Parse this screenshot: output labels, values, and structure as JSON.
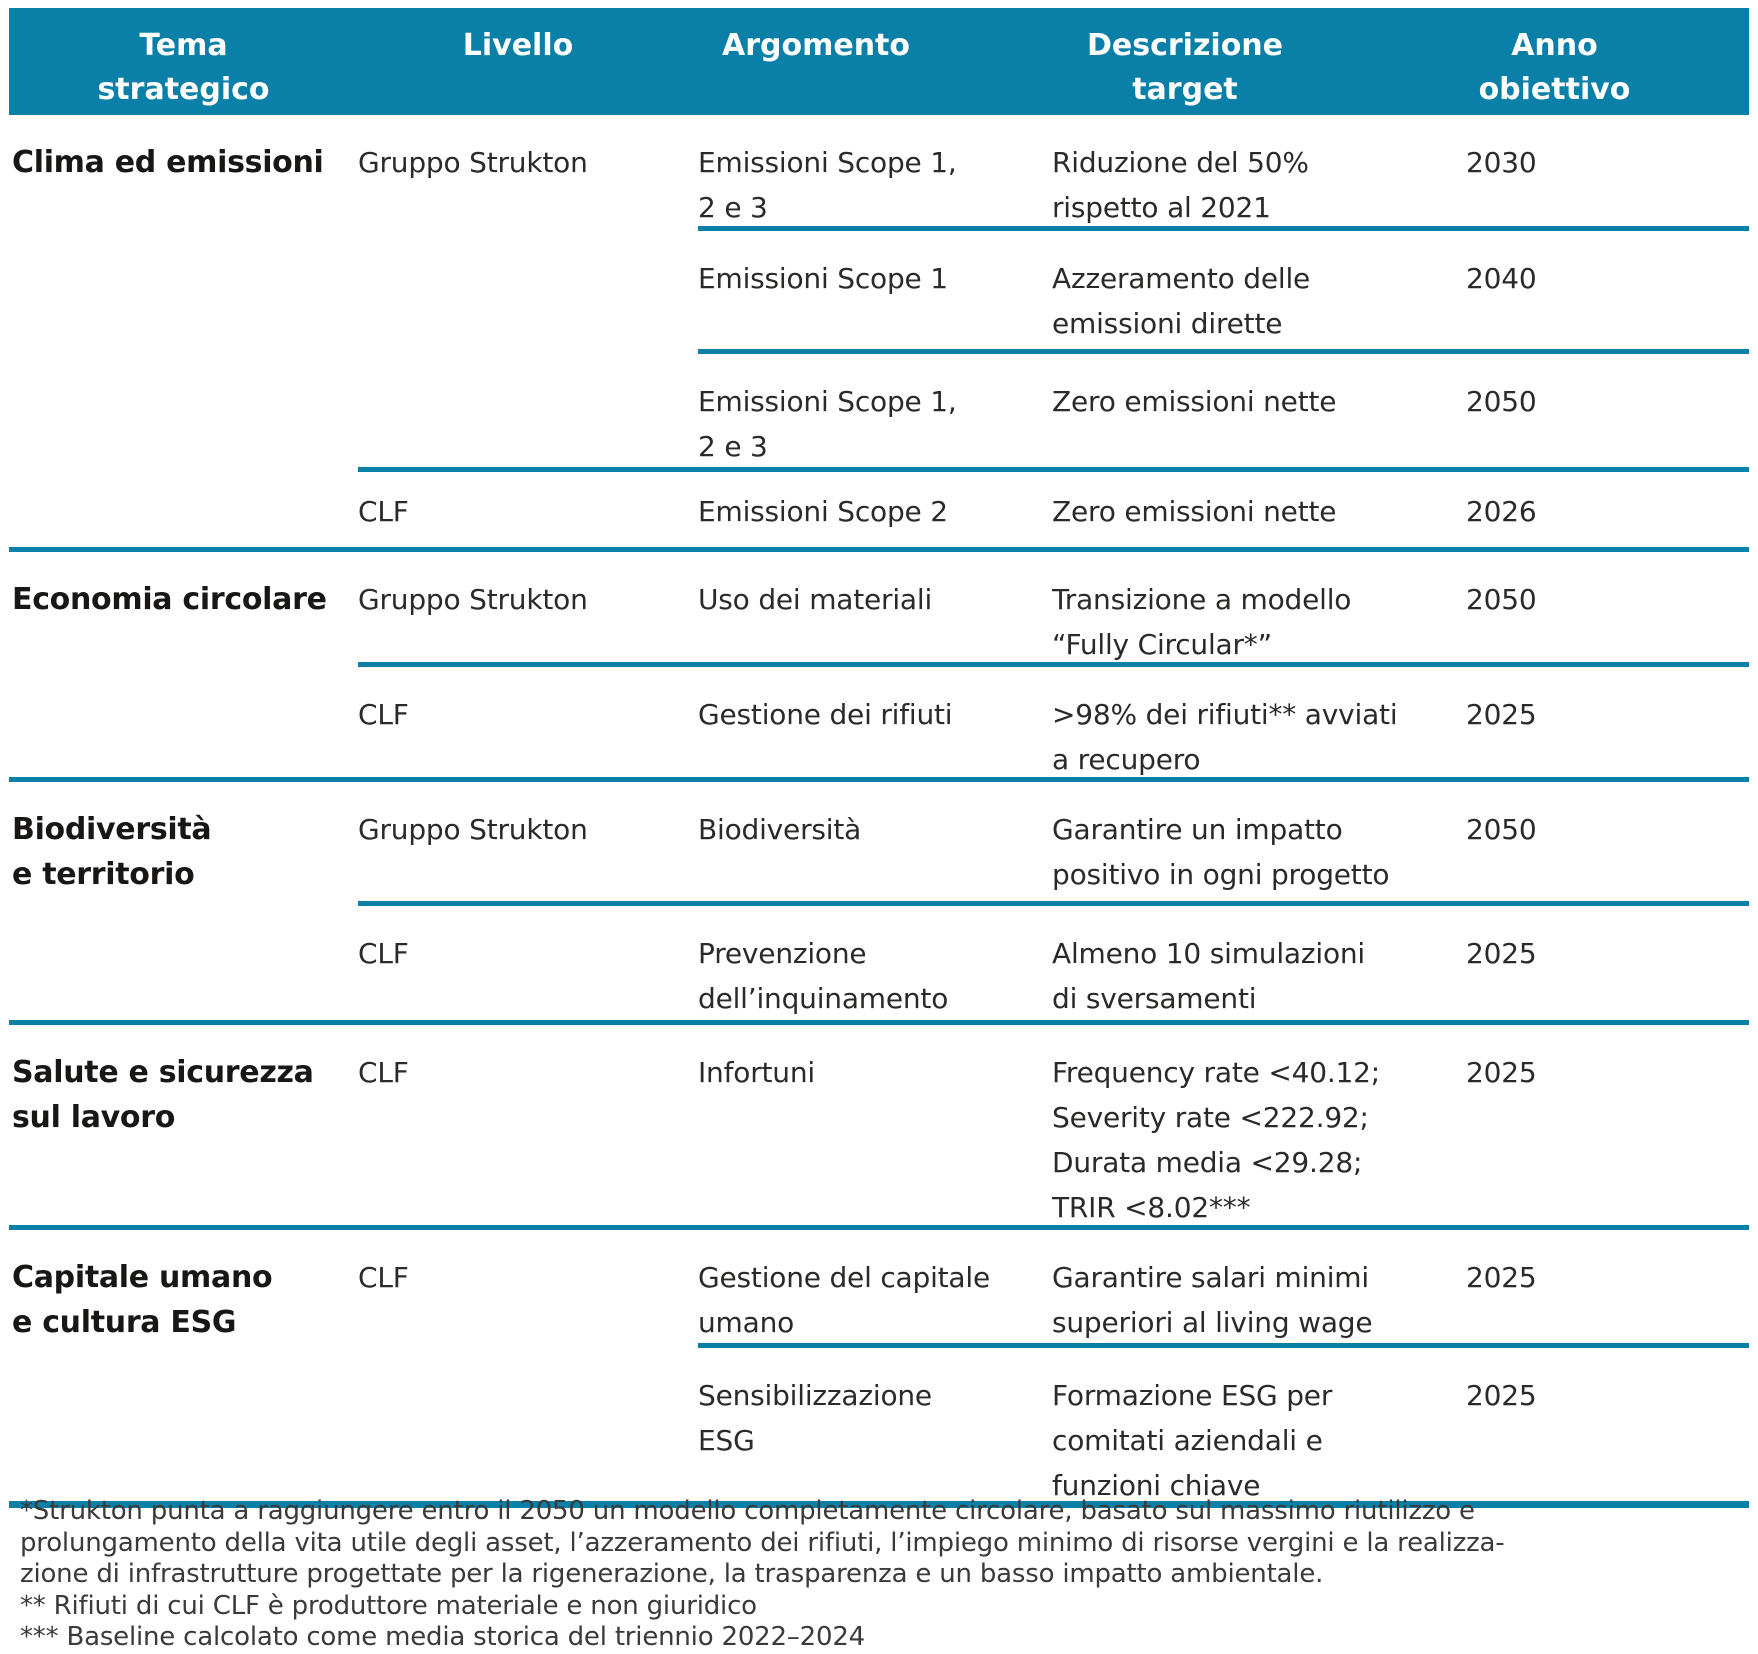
{
  "colors": {
    "accent_teal": "#0a80a8",
    "header_text": "#ffffff",
    "body_text": "#2b2a28",
    "theme_text": "#181716"
  },
  "table": {
    "headers": [
      "Tema\nstrategico",
      "Livello",
      "Argomento",
      "Descrizione\ntarget",
      "Anno\nobiettivo"
    ],
    "rows": [
      {
        "tema": "Clima ed emissioni",
        "livello": "Gruppo Strukton",
        "argomento": "Emissioni Scope 1,\n2 e 3",
        "descrizione": "Riduzione del 50%\nrispetto al 2021",
        "anno": "2030"
      },
      {
        "tema": "",
        "livello": "",
        "argomento": "Emissioni Scope 1",
        "descrizione": "Azzeramento delle\nemissioni dirette",
        "anno": "2040"
      },
      {
        "tema": "",
        "livello": "",
        "argomento": "Emissioni Scope 1,\n2 e 3",
        "descrizione": "Zero emissioni nette",
        "anno": "2050"
      },
      {
        "tema": "",
        "livello": "CLF",
        "argomento": "Emissioni Scope 2",
        "descrizione": "Zero emissioni nette",
        "anno": "2026"
      },
      {
        "tema": "Economia circolare",
        "livello": "Gruppo Strukton",
        "argomento": "Uso dei materiali",
        "descrizione": "Transizione a modello\n“Fully Circular*”",
        "anno": "2050"
      },
      {
        "tema": "",
        "livello": "CLF",
        "argomento": "Gestione dei rifiuti",
        "descrizione": ">98% dei rifiuti** avviati\na recupero",
        "anno": "2025"
      },
      {
        "tema": "Biodiversità\ne territorio",
        "livello": "Gruppo Strukton",
        "argomento": "Biodiversità",
        "descrizione": "Garantire un impatto\npositivo in ogni progetto",
        "anno": "2050"
      },
      {
        "tema": "",
        "livello": "CLF",
        "argomento": "Prevenzione\ndell’inquinamento",
        "descrizione": "Almeno 10 simulazioni\ndi sversamenti",
        "anno": "2025"
      },
      {
        "tema": "Salute e sicurezza\nsul lavoro",
        "livello": "CLF",
        "argomento": "Infortuni",
        "descrizione": "Frequency rate <40.12;\nSeverity rate <222.92;\nDurata media <29.28;\nTRIR <8.02***",
        "anno": "2025"
      },
      {
        "tema": "Capitale umano\ne cultura ESG",
        "livello": "CLF",
        "argomento": "Gestione del capitale\numano",
        "descrizione": "Garantire salari minimi\nsuperiori al living wage",
        "anno": "2025"
      },
      {
        "tema": "",
        "livello": "",
        "argomento": "Sensibilizzazione\nESG",
        "descrizione": "Formazione ESG per\ncomitati aziendali e\nfunzioni chiave",
        "anno": "2025"
      }
    ]
  },
  "footnotes": [
    "*Strukton punta a raggiungere entro il 2050 un modello completamente circolare, basato sul massimo riutilizzo e\nprolungamento della vita utile degli asset, l’azzeramento dei rifiuti, l’impiego minimo di risorse vergini e la realizza-\nzione di infrastrutture progettate per la rigenerazione, la trasparenza e un basso impatto ambientale.",
    "** Rifiuti di cui CLF è produttore materiale e non giuridico",
    "*** Baseline calcolato come media storica del triennio 2022–2024"
  ]
}
